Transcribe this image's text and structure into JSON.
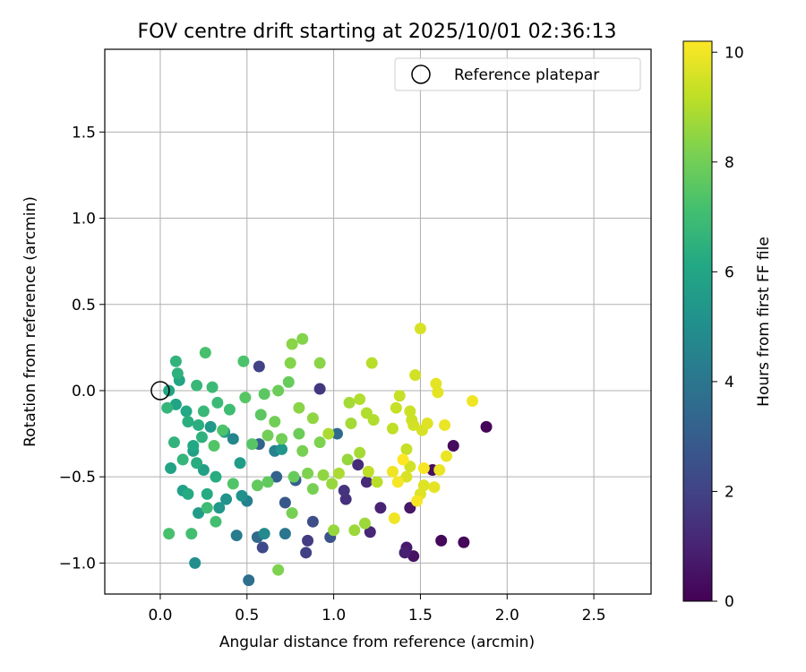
{
  "chart_data": {
    "type": "scatter",
    "title": "FOV centre drift starting at 2025/10/01 02:36:13",
    "xlabel": "Angular distance from reference (arcmin)",
    "ylabel": "Rotation from reference (arcmin)",
    "xlim": [
      -0.32,
      2.83
    ],
    "ylim": [
      -1.18,
      1.98
    ],
    "xticks": [
      0.0,
      0.5,
      1.0,
      1.5,
      2.0,
      2.5
    ],
    "xtick_labels": [
      "0.0",
      "0.5",
      "1.0",
      "1.5",
      "2.0",
      "2.5"
    ],
    "yticks": [
      -1.0,
      -0.5,
      0.0,
      0.5,
      1.0,
      1.5
    ],
    "ytick_labels": [
      "−1.0",
      "−0.5",
      "0.0",
      "0.5",
      "1.0",
      "1.5"
    ],
    "grid": true,
    "legend": {
      "position": "top-right",
      "entries": [
        "Reference platepar"
      ]
    },
    "reference_point": {
      "x": 0.0,
      "y": 0.0,
      "label": "Reference platepar"
    },
    "colorbar": {
      "label": "Hours from first FF file",
      "colormap": "viridis",
      "range": [
        0,
        10.2
      ],
      "ticks": [
        0,
        2,
        4,
        6,
        8,
        10
      ],
      "tick_labels": [
        "0",
        "2",
        "4",
        "6",
        "8",
        "10"
      ]
    },
    "points": [
      [
        1.88,
        -0.21,
        0.1
      ],
      [
        1.75,
        -0.88,
        0.2
      ],
      [
        1.62,
        -0.87,
        0.2
      ],
      [
        1.69,
        -0.32,
        0.3
      ],
      [
        1.57,
        -0.46,
        0.4
      ],
      [
        1.46,
        -0.96,
        0.5
      ],
      [
        1.44,
        -0.68,
        0.6
      ],
      [
        1.42,
        -0.91,
        0.7
      ],
      [
        1.41,
        -0.94,
        0.9
      ],
      [
        1.27,
        -0.68,
        1.0
      ],
      [
        1.21,
        -0.82,
        1.1
      ],
      [
        1.19,
        -0.53,
        1.2
      ],
      [
        1.14,
        -0.43,
        1.3
      ],
      [
        1.07,
        -0.63,
        1.4
      ],
      [
        1.06,
        -0.58,
        1.5
      ],
      [
        0.92,
        0.01,
        1.6
      ],
      [
        0.85,
        -0.87,
        1.8
      ],
      [
        0.84,
        -0.94,
        1.9
      ],
      [
        0.57,
        0.14,
        2.0
      ],
      [
        0.59,
        -0.91,
        2.2
      ],
      [
        0.88,
        -0.76,
        2.4
      ],
      [
        0.98,
        -0.85,
        2.6
      ],
      [
        0.72,
        -0.65,
        2.8
      ],
      [
        0.78,
        -0.52,
        3.0
      ],
      [
        0.67,
        -0.5,
        3.2
      ],
      [
        1.02,
        -0.25,
        3.5
      ],
      [
        0.57,
        -0.31,
        3.2
      ],
      [
        0.56,
        -0.85,
        3.5
      ],
      [
        0.51,
        -1.1,
        3.7
      ],
      [
        0.72,
        -0.83,
        4.0
      ],
      [
        0.44,
        -0.84,
        4.2
      ],
      [
        0.5,
        -0.64,
        4.4
      ],
      [
        0.66,
        -0.35,
        4.5
      ],
      [
        0.42,
        -0.28,
        4.6
      ],
      [
        0.6,
        -0.83,
        4.8
      ],
      [
        0.2,
        -1.0,
        5.0
      ],
      [
        0.47,
        -0.61,
        5.1
      ],
      [
        0.38,
        -0.63,
        5.2
      ],
      [
        0.7,
        -0.34,
        5.3
      ],
      [
        0.34,
        -0.68,
        5.4
      ],
      [
        0.29,
        -0.21,
        5.4
      ],
      [
        0.37,
        -0.24,
        5.5
      ],
      [
        0.46,
        -0.42,
        5.6
      ],
      [
        0.22,
        -0.71,
        5.6
      ],
      [
        0.25,
        -0.46,
        5.7
      ],
      [
        0.13,
        -0.58,
        5.8
      ],
      [
        0.19,
        -0.35,
        5.8
      ],
      [
        0.06,
        -0.45,
        5.9
      ],
      [
        0.09,
        -0.08,
        5.9
      ],
      [
        0.05,
        0.0,
        6.0
      ],
      [
        0.11,
        0.06,
        6.0
      ],
      [
        0.15,
        -0.12,
        6.1
      ],
      [
        0.19,
        -0.32,
        6.1
      ],
      [
        0.16,
        -0.6,
        6.2
      ],
      [
        0.27,
        -0.6,
        6.2
      ],
      [
        0.32,
        -0.5,
        6.3
      ],
      [
        0.21,
        -0.42,
        6.3
      ],
      [
        0.22,
        -0.2,
        6.4
      ],
      [
        0.16,
        -0.18,
        6.4
      ],
      [
        0.24,
        -0.27,
        6.5
      ],
      [
        0.1,
        0.1,
        6.5
      ],
      [
        0.09,
        0.17,
        6.6
      ],
      [
        0.08,
        -0.3,
        6.6
      ],
      [
        0.04,
        -0.1,
        6.7
      ],
      [
        0.13,
        -0.4,
        6.7
      ],
      [
        0.21,
        0.03,
        6.8
      ],
      [
        0.25,
        -0.12,
        6.8
      ],
      [
        0.3,
        0.02,
        6.9
      ],
      [
        0.33,
        -0.07,
        6.9
      ],
      [
        0.4,
        -0.11,
        7.0
      ],
      [
        0.27,
        -0.68,
        7.0
      ],
      [
        0.32,
        -0.76,
        7.1
      ],
      [
        0.18,
        -0.83,
        7.1
      ],
      [
        0.05,
        -0.83,
        7.2
      ],
      [
        0.26,
        0.22,
        7.2
      ],
      [
        0.48,
        0.17,
        7.3
      ],
      [
        0.36,
        -0.23,
        7.3
      ],
      [
        0.42,
        -0.54,
        7.4
      ],
      [
        0.31,
        -0.32,
        7.4
      ],
      [
        0.53,
        -0.31,
        7.5
      ],
      [
        0.49,
        -0.04,
        7.5
      ],
      [
        0.58,
        -0.14,
        7.6
      ],
      [
        0.6,
        -0.02,
        7.6
      ],
      [
        0.56,
        -0.55,
        7.7
      ],
      [
        0.62,
        -0.53,
        7.7
      ],
      [
        0.77,
        -0.5,
        7.8
      ],
      [
        0.74,
        0.05,
        7.8
      ],
      [
        0.68,
        0.0,
        7.9
      ],
      [
        0.8,
        -0.25,
        7.9
      ],
      [
        0.62,
        -0.26,
        8.0
      ],
      [
        0.7,
        -0.28,
        8.0
      ],
      [
        0.66,
        -0.18,
        8.0
      ],
      [
        0.82,
        -0.35,
        8.1
      ],
      [
        0.88,
        -0.57,
        8.1
      ],
      [
        0.76,
        -0.71,
        8.1
      ],
      [
        0.68,
        -1.04,
        8.2
      ],
      [
        0.85,
        -0.48,
        8.2
      ],
      [
        0.92,
        -0.3,
        8.2
      ],
      [
        0.75,
        0.16,
        8.3
      ],
      [
        0.82,
        0.3,
        8.3
      ],
      [
        0.76,
        0.27,
        8.4
      ],
      [
        0.92,
        0.16,
        8.4
      ],
      [
        0.8,
        -0.1,
        8.4
      ],
      [
        0.88,
        -0.16,
        8.5
      ],
      [
        0.94,
        -0.49,
        8.5
      ],
      [
        0.99,
        -0.54,
        8.6
      ],
      [
        1.0,
        -0.81,
        8.6
      ],
      [
        1.08,
        -0.4,
        8.6
      ],
      [
        1.12,
        -0.81,
        8.7
      ],
      [
        1.18,
        -0.77,
        8.7
      ],
      [
        1.15,
        -0.36,
        8.8
      ],
      [
        1.1,
        -0.19,
        8.8
      ],
      [
        1.09,
        -0.07,
        8.8
      ],
      [
        0.97,
        -0.25,
        8.9
      ],
      [
        1.03,
        -0.48,
        8.9
      ],
      [
        1.15,
        -0.05,
        9.0
      ],
      [
        1.19,
        -0.13,
        9.0
      ],
      [
        1.23,
        -0.17,
        9.0
      ],
      [
        1.22,
        0.16,
        9.1
      ],
      [
        1.25,
        -0.53,
        9.1
      ],
      [
        1.2,
        -0.47,
        9.2
      ],
      [
        1.34,
        -0.22,
        9.2
      ],
      [
        1.36,
        -0.1,
        9.3
      ],
      [
        1.38,
        -0.03,
        9.3
      ],
      [
        1.42,
        -0.34,
        9.3
      ],
      [
        1.44,
        -0.12,
        9.4
      ],
      [
        1.45,
        -0.17,
        9.4
      ],
      [
        1.47,
        0.09,
        9.5
      ],
      [
        1.46,
        -0.2,
        9.5
      ],
      [
        1.44,
        -0.44,
        9.5
      ],
      [
        1.42,
        -0.5,
        9.6
      ],
      [
        1.5,
        0.36,
        9.6
      ],
      [
        1.51,
        -0.23,
        9.6
      ],
      [
        1.54,
        -0.19,
        9.7
      ],
      [
        1.5,
        -0.6,
        9.7
      ],
      [
        1.52,
        -0.55,
        9.7
      ],
      [
        1.58,
        -0.56,
        9.8
      ],
      [
        1.59,
        0.04,
        9.8
      ],
      [
        1.6,
        -0.01,
        9.8
      ],
      [
        1.61,
        -0.46,
        9.9
      ],
      [
        1.64,
        -0.2,
        9.9
      ],
      [
        1.65,
        -0.38,
        9.9
      ],
      [
        1.8,
        -0.06,
        10.0
      ],
      [
        1.35,
        -0.74,
        10.0
      ],
      [
        1.34,
        -0.47,
        10.0
      ],
      [
        1.37,
        -0.53,
        10.1
      ],
      [
        1.48,
        -0.64,
        10.1
      ],
      [
        1.52,
        -0.45,
        10.1
      ],
      [
        1.4,
        -0.4,
        10.2
      ]
    ]
  }
}
